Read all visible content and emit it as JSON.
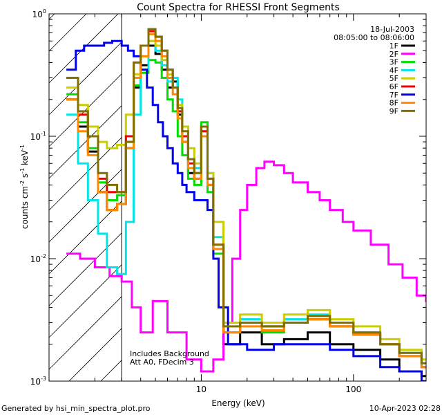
{
  "chart_data": {
    "type": "line",
    "title": "Count Spectra for RHESSI Front Segments",
    "xlabel": "Energy (keV)",
    "ylabel_parts": {
      "a": "counts cm",
      "b": "-2",
      "c": " s",
      "d": "-1",
      "e": " keV",
      "f": "-1"
    },
    "xscale": "log",
    "yscale": "log",
    "xlim": [
      1,
      300
    ],
    "ylim": [
      0.001,
      1
    ],
    "x_ticks": [
      {
        "v": 10,
        "label": "10"
      },
      {
        "v": 100,
        "label": "100"
      }
    ],
    "y_ticks": [
      {
        "v": 0.001,
        "base": "10",
        "exp": "-3"
      },
      {
        "v": 0.01,
        "base": "10",
        "exp": "-2"
      },
      {
        "v": 0.1,
        "base": "10",
        "exp": "-1"
      },
      {
        "v": 1,
        "base": "10",
        "exp": "0"
      }
    ],
    "hatch_region_kev": [
      1,
      3
    ],
    "legend_header": [
      "18-Jul-2003",
      "08:05:00 to 08:06:00"
    ],
    "annotations": [
      "Includes Background",
      "Att A0, FDecim 3"
    ],
    "footer_left": "Generated by hsi_min_spectra_plot.pro",
    "footer_right": "10-Apr-2023 02:28",
    "series": [
      {
        "name": "1F",
        "color": "#000000",
        "points": [
          [
            1.3,
            0.2
          ],
          [
            1.55,
            0.12
          ],
          [
            1.8,
            0.075
          ],
          [
            2.1,
            0.035
          ],
          [
            2.4,
            0.025
          ],
          [
            2.8,
            0.028
          ],
          [
            3.2,
            0.08
          ],
          [
            3.6,
            0.25
          ],
          [
            4.0,
            0.38
          ],
          [
            4.5,
            0.55
          ],
          [
            5.0,
            0.47
          ],
          [
            5.5,
            0.35
          ],
          [
            6.0,
            0.25
          ],
          [
            6.5,
            0.28
          ],
          [
            7.0,
            0.15
          ],
          [
            7.5,
            0.09
          ],
          [
            8.2,
            0.05
          ],
          [
            9.0,
            0.045
          ],
          [
            10.0,
            0.12
          ],
          [
            11.0,
            0.04
          ],
          [
            12.0,
            0.012
          ],
          [
            14,
            0.002
          ],
          [
            18,
            0.0025
          ],
          [
            25,
            0.002
          ],
          [
            35,
            0.0022
          ],
          [
            50,
            0.0025
          ],
          [
            70,
            0.002
          ],
          [
            100,
            0.0018
          ],
          [
            150,
            0.0015
          ],
          [
            200,
            0.0012
          ],
          [
            280,
            0.0011
          ]
        ]
      },
      {
        "name": "2F",
        "color": "#ff00ff",
        "points": [
          [
            1.3,
            0.011
          ],
          [
            1.6,
            0.01
          ],
          [
            2.0,
            0.0085
          ],
          [
            2.5,
            0.0072
          ],
          [
            3.0,
            0.0065
          ],
          [
            3.5,
            0.004
          ],
          [
            4.0,
            0.0025
          ],
          [
            4.8,
            0.0045
          ],
          [
            6.0,
            0.0025
          ],
          [
            8.0,
            0.0015
          ],
          [
            10,
            0.0012
          ],
          [
            12,
            0.0015
          ],
          [
            14,
            0.003
          ],
          [
            16,
            0.01
          ],
          [
            18,
            0.025
          ],
          [
            20,
            0.04
          ],
          [
            23,
            0.055
          ],
          [
            26,
            0.062
          ],
          [
            30,
            0.058
          ],
          [
            35,
            0.05
          ],
          [
            40,
            0.042
          ],
          [
            50,
            0.035
          ],
          [
            60,
            0.03
          ],
          [
            70,
            0.025
          ],
          [
            85,
            0.02
          ],
          [
            100,
            0.017
          ],
          [
            130,
            0.013
          ],
          [
            170,
            0.009
          ],
          [
            210,
            0.007
          ],
          [
            260,
            0.005
          ],
          [
            300,
            0.0045
          ]
        ]
      },
      {
        "name": "3F",
        "color": "#00dd00",
        "points": [
          [
            1.3,
            0.22
          ],
          [
            1.55,
            0.13
          ],
          [
            1.8,
            0.08
          ],
          [
            2.1,
            0.042
          ],
          [
            2.4,
            0.03
          ],
          [
            2.8,
            0.033
          ],
          [
            3.2,
            0.09
          ],
          [
            3.6,
            0.26
          ],
          [
            4.0,
            0.33
          ],
          [
            4.5,
            0.42
          ],
          [
            5.0,
            0.4
          ],
          [
            5.5,
            0.3
          ],
          [
            6.0,
            0.2
          ],
          [
            6.5,
            0.16
          ],
          [
            7.0,
            0.1
          ],
          [
            7.5,
            0.07
          ],
          [
            8.2,
            0.045
          ],
          [
            9.0,
            0.04
          ],
          [
            10.0,
            0.13
          ],
          [
            11.0,
            0.035
          ],
          [
            12.0,
            0.011
          ],
          [
            14,
            0.0025
          ],
          [
            18,
            0.003
          ],
          [
            25,
            0.0025
          ],
          [
            35,
            0.003
          ],
          [
            50,
            0.0032
          ],
          [
            70,
            0.0028
          ],
          [
            100,
            0.0024
          ],
          [
            150,
            0.002
          ],
          [
            200,
            0.0016
          ],
          [
            280,
            0.0013
          ]
        ]
      },
      {
        "name": "4F",
        "color": "#00e5e5",
        "points": [
          [
            1.3,
            0.15
          ],
          [
            1.55,
            0.06
          ],
          [
            1.8,
            0.03
          ],
          [
            2.1,
            0.016
          ],
          [
            2.4,
            0.0085
          ],
          [
            2.8,
            0.0075
          ],
          [
            3.2,
            0.02
          ],
          [
            3.6,
            0.15
          ],
          [
            4.0,
            0.35
          ],
          [
            4.5,
            0.6
          ],
          [
            5.0,
            0.5
          ],
          [
            5.5,
            0.38
          ],
          [
            6.0,
            0.28
          ],
          [
            6.5,
            0.3
          ],
          [
            7.0,
            0.2
          ],
          [
            7.5,
            0.12
          ],
          [
            8.2,
            0.065
          ],
          [
            9.0,
            0.055
          ],
          [
            10.0,
            0.1
          ],
          [
            11.0,
            0.05
          ],
          [
            12.0,
            0.015
          ],
          [
            14,
            0.003
          ],
          [
            18,
            0.0032
          ],
          [
            25,
            0.0028
          ],
          [
            35,
            0.0032
          ],
          [
            50,
            0.0035
          ],
          [
            70,
            0.003
          ],
          [
            100,
            0.0025
          ],
          [
            150,
            0.002
          ],
          [
            200,
            0.0017
          ],
          [
            280,
            0.0014
          ]
        ]
      },
      {
        "name": "5F",
        "color": "#cccc00",
        "points": [
          [
            1.3,
            0.25
          ],
          [
            1.55,
            0.18
          ],
          [
            1.8,
            0.12
          ],
          [
            2.1,
            0.09
          ],
          [
            2.4,
            0.08
          ],
          [
            2.8,
            0.085
          ],
          [
            3.2,
            0.15
          ],
          [
            3.6,
            0.32
          ],
          [
            4.0,
            0.45
          ],
          [
            4.5,
            0.6
          ],
          [
            5.0,
            0.55
          ],
          [
            5.5,
            0.42
          ],
          [
            6.0,
            0.32
          ],
          [
            6.5,
            0.25
          ],
          [
            7.0,
            0.18
          ],
          [
            7.5,
            0.12
          ],
          [
            8.2,
            0.08
          ],
          [
            9.0,
            0.06
          ],
          [
            10.0,
            0.1
          ],
          [
            11.0,
            0.05
          ],
          [
            12.0,
            0.02
          ],
          [
            14,
            0.003
          ],
          [
            18,
            0.0035
          ],
          [
            25,
            0.003
          ],
          [
            35,
            0.0035
          ],
          [
            50,
            0.0038
          ],
          [
            70,
            0.0032
          ],
          [
            100,
            0.0028
          ],
          [
            150,
            0.0022
          ],
          [
            200,
            0.0018
          ],
          [
            280,
            0.0015
          ]
        ]
      },
      {
        "name": "6F",
        "color": "#ee0000",
        "points": [
          [
            1.3,
            0.3
          ],
          [
            1.55,
            0.15
          ],
          [
            1.8,
            0.1
          ],
          [
            2.1,
            0.045
          ],
          [
            2.4,
            0.035
          ],
          [
            2.8,
            0.035
          ],
          [
            3.2,
            0.1
          ],
          [
            3.6,
            0.4
          ],
          [
            4.0,
            0.55
          ],
          [
            4.5,
            0.72
          ],
          [
            5.0,
            0.65
          ],
          [
            5.5,
            0.5
          ],
          [
            6.0,
            0.35
          ],
          [
            6.5,
            0.25
          ],
          [
            7.0,
            0.16
          ],
          [
            7.5,
            0.1
          ],
          [
            8.2,
            0.06
          ],
          [
            9.0,
            0.05
          ],
          [
            10.0,
            0.11
          ],
          [
            11.0,
            0.045
          ],
          [
            12.0,
            0.013
          ],
          [
            14,
            0.0025
          ],
          [
            18,
            0.003
          ],
          [
            25,
            0.0028
          ],
          [
            35,
            0.003
          ],
          [
            50,
            0.0032
          ],
          [
            70,
            0.0028
          ],
          [
            100,
            0.0024
          ],
          [
            150,
            0.002
          ],
          [
            200,
            0.0016
          ],
          [
            280,
            0.0013
          ]
        ]
      },
      {
        "name": "7F",
        "color": "#0000ee",
        "points": [
          [
            1.3,
            0.35
          ],
          [
            1.5,
            0.5
          ],
          [
            1.7,
            0.55
          ],
          [
            2.0,
            0.55
          ],
          [
            2.3,
            0.58
          ],
          [
            2.6,
            0.6
          ],
          [
            3.0,
            0.55
          ],
          [
            3.3,
            0.5
          ],
          [
            3.6,
            0.45
          ],
          [
            4.0,
            0.35
          ],
          [
            4.4,
            0.25
          ],
          [
            4.8,
            0.18
          ],
          [
            5.2,
            0.13
          ],
          [
            5.6,
            0.1
          ],
          [
            6.0,
            0.08
          ],
          [
            6.5,
            0.06
          ],
          [
            7.0,
            0.05
          ],
          [
            7.5,
            0.04
          ],
          [
            8.0,
            0.035
          ],
          [
            9.0,
            0.03
          ],
          [
            10,
            0.03
          ],
          [
            11,
            0.025
          ],
          [
            12,
            0.01
          ],
          [
            13,
            0.004
          ],
          [
            15,
            0.002
          ],
          [
            20,
            0.0018
          ],
          [
            30,
            0.002
          ],
          [
            50,
            0.002
          ],
          [
            70,
            0.0018
          ],
          [
            100,
            0.0016
          ],
          [
            150,
            0.0013
          ],
          [
            200,
            0.0012
          ],
          [
            280,
            0.001
          ]
        ]
      },
      {
        "name": "8F",
        "color": "#ff8800",
        "points": [
          [
            1.3,
            0.2
          ],
          [
            1.55,
            0.11
          ],
          [
            1.8,
            0.07
          ],
          [
            2.1,
            0.035
          ],
          [
            2.4,
            0.025
          ],
          [
            2.8,
            0.028
          ],
          [
            3.2,
            0.08
          ],
          [
            3.6,
            0.3
          ],
          [
            4.0,
            0.45
          ],
          [
            4.5,
            0.68
          ],
          [
            5.0,
            0.6
          ],
          [
            5.5,
            0.45
          ],
          [
            6.0,
            0.3
          ],
          [
            6.5,
            0.22
          ],
          [
            7.0,
            0.14
          ],
          [
            7.5,
            0.09
          ],
          [
            8.2,
            0.055
          ],
          [
            9.0,
            0.045
          ],
          [
            10.0,
            0.1
          ],
          [
            11.0,
            0.04
          ],
          [
            12.0,
            0.012
          ],
          [
            14,
            0.0025
          ],
          [
            18,
            0.0028
          ],
          [
            25,
            0.0026
          ],
          [
            35,
            0.003
          ],
          [
            50,
            0.0032
          ],
          [
            70,
            0.0028
          ],
          [
            100,
            0.0024
          ],
          [
            150,
            0.002
          ],
          [
            200,
            0.0016
          ],
          [
            280,
            0.0013
          ]
        ]
      },
      {
        "name": "9F",
        "color": "#807000",
        "points": [
          [
            1.3,
            0.3
          ],
          [
            1.55,
            0.16
          ],
          [
            1.8,
            0.1
          ],
          [
            2.1,
            0.05
          ],
          [
            2.4,
            0.04
          ],
          [
            2.8,
            0.035
          ],
          [
            3.2,
            0.09
          ],
          [
            3.6,
            0.4
          ],
          [
            4.0,
            0.55
          ],
          [
            4.5,
            0.75
          ],
          [
            5.0,
            0.65
          ],
          [
            5.5,
            0.5
          ],
          [
            6.0,
            0.35
          ],
          [
            6.5,
            0.25
          ],
          [
            7.0,
            0.17
          ],
          [
            7.5,
            0.11
          ],
          [
            8.2,
            0.065
          ],
          [
            9.0,
            0.05
          ],
          [
            10.0,
            0.12
          ],
          [
            11.0,
            0.045
          ],
          [
            12.0,
            0.013
          ],
          [
            14,
            0.0028
          ],
          [
            18,
            0.003
          ],
          [
            25,
            0.0028
          ],
          [
            35,
            0.003
          ],
          [
            50,
            0.0034
          ],
          [
            70,
            0.003
          ],
          [
            100,
            0.0025
          ],
          [
            150,
            0.002
          ],
          [
            200,
            0.0017
          ],
          [
            280,
            0.0014
          ]
        ]
      }
    ]
  }
}
